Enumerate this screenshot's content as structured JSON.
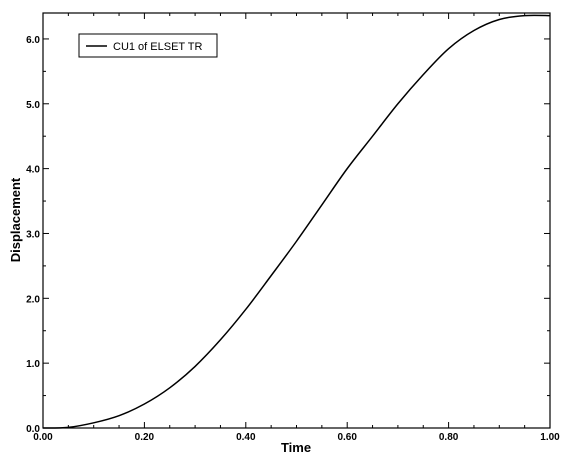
{
  "chart_data": {
    "type": "line",
    "xlabel": "Time",
    "ylabel": "Displacement",
    "xlim": [
      0.0,
      1.0
    ],
    "ylim": [
      0.0,
      6.4
    ],
    "xticks": [
      "0.00",
      "0.20",
      "0.40",
      "0.60",
      "0.80",
      "1.00"
    ],
    "yticks": [
      "0.0",
      "1.0",
      "2.0",
      "3.0",
      "4.0",
      "5.0",
      "6.0"
    ],
    "grid": false,
    "legend": "top-left",
    "series": [
      {
        "name": "CU1 of ELSET TR",
        "color": "#000000",
        "x": [
          0.0,
          0.05,
          0.1,
          0.15,
          0.2,
          0.25,
          0.3,
          0.35,
          0.4,
          0.45,
          0.5,
          0.55,
          0.6,
          0.65,
          0.7,
          0.75,
          0.8,
          0.85,
          0.9,
          0.95,
          1.0
        ],
        "y": [
          0.0,
          0.01,
          0.08,
          0.19,
          0.37,
          0.62,
          0.95,
          1.36,
          1.83,
          2.35,
          2.88,
          3.44,
          4.0,
          4.5,
          5.0,
          5.45,
          5.85,
          6.13,
          6.3,
          6.36,
          6.36
        ]
      }
    ]
  }
}
